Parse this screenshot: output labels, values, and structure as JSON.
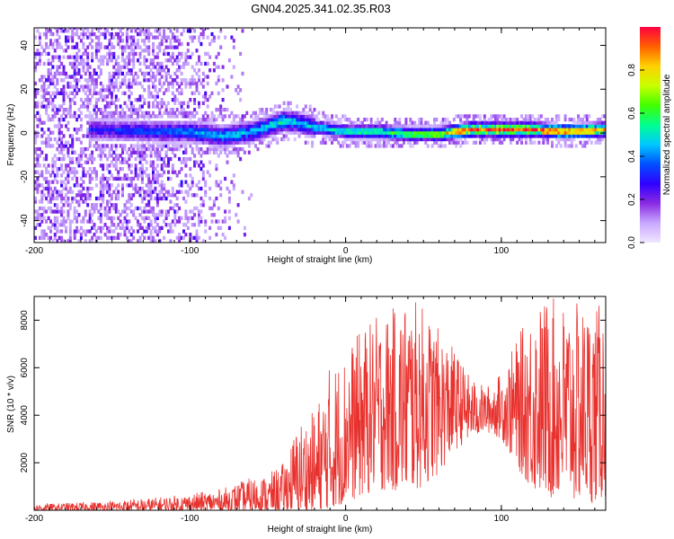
{
  "title": "GN04.2025.341.02.35.R03",
  "colors": {
    "snr_line": "#e8322e",
    "background": "#ffffff",
    "frame": "#000000"
  },
  "chart_data": [
    {
      "type": "heatmap",
      "name": "spectrogram",
      "xlabel": "Height of straight line (km)",
      "ylabel": "Frequency (Hz)",
      "xlim": [
        -200,
        167
      ],
      "ylim": [
        -50,
        48
      ],
      "x_ticks": [
        "-200",
        "-100",
        "0",
        "100"
      ],
      "x_tick_values": [
        -200,
        -100,
        0,
        100
      ],
      "y_ticks": [
        "40",
        "20",
        "0",
        "-20",
        "-40"
      ],
      "y_tick_values": [
        40,
        20,
        0,
        -20,
        -40
      ],
      "colorbar": {
        "label": "Normalized spectral amplitude",
        "range": [
          0,
          1
        ],
        "ticks": [
          "0.0",
          "0.2",
          "0.4",
          "0.6",
          "0.8"
        ],
        "tick_values": [
          0.0,
          0.2,
          0.4,
          0.6,
          0.8
        ],
        "colormap": [
          "#f0e6ff",
          "#c8a8ff",
          "#8a2be2",
          "#3000ff",
          "#0050ff",
          "#00c8ff",
          "#00ff90",
          "#40ff00",
          "#c8ff00",
          "#ffd000",
          "#ff6000",
          "#ff0040"
        ]
      },
      "ridge": {
        "description_points_x": [
          -160,
          -120,
          -100,
          -80,
          -60,
          -40,
          -30,
          -20,
          0,
          20,
          40,
          60,
          70,
          80,
          100,
          120,
          140,
          167
        ],
        "frequency": [
          1,
          0,
          0,
          -2,
          0,
          5,
          4,
          2,
          0,
          0,
          -1,
          -1,
          0,
          1,
          1,
          1,
          0,
          1
        ],
        "peak_amplitude": [
          0.3,
          0.35,
          0.4,
          0.45,
          0.45,
          0.5,
          0.45,
          0.45,
          0.5,
          0.55,
          0.6,
          0.65,
          0.85,
          0.9,
          0.95,
          0.9,
          0.85,
          0.8
        ]
      }
    },
    {
      "type": "line",
      "name": "snr",
      "xlabel": "Height of straight line (km)",
      "ylabel": "SNR (10 * v/v)",
      "xlim": [
        -200,
        167
      ],
      "ylim": [
        0,
        9000
      ],
      "x_ticks": [
        "-200",
        "-100",
        "0",
        "100"
      ],
      "x_tick_values": [
        -200,
        -100,
        0,
        100
      ],
      "y_ticks": [
        "8000",
        "6000",
        "4000",
        "2000"
      ],
      "y_tick_values": [
        8000,
        6000,
        4000,
        2000
      ],
      "envelope_x": [
        -200,
        -150,
        -120,
        -100,
        -80,
        -60,
        -50,
        -40,
        -30,
        -20,
        -10,
        0,
        10,
        20,
        30,
        40,
        50,
        60,
        70,
        80,
        90,
        100,
        110,
        120,
        130,
        140,
        150,
        160,
        167
      ],
      "envelope_max": [
        250,
        400,
        550,
        700,
        900,
        1400,
        1500,
        2000,
        3800,
        4200,
        6200,
        6800,
        7600,
        8200,
        8500,
        9000,
        8600,
        7600,
        6800,
        5600,
        5200,
        5800,
        7200,
        8600,
        9000,
        8800,
        8700,
        8600,
        8800
      ],
      "envelope_min": [
        0,
        0,
        0,
        0,
        0,
        0,
        0,
        0,
        0,
        0,
        100,
        300,
        500,
        800,
        800,
        600,
        1000,
        1500,
        2500,
        3000,
        3300,
        3000,
        1800,
        800,
        500,
        300,
        300,
        300,
        500
      ]
    }
  ]
}
